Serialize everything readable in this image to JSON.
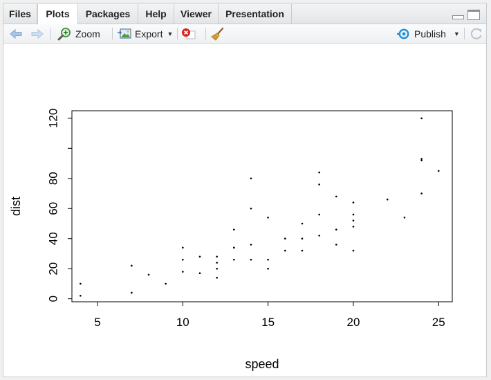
{
  "tabs": [
    {
      "label": "Files",
      "active": false
    },
    {
      "label": "Plots",
      "active": true
    },
    {
      "label": "Packages",
      "active": false
    },
    {
      "label": "Help",
      "active": false
    },
    {
      "label": "Viewer",
      "active": false
    },
    {
      "label": "Presentation",
      "active": false
    }
  ],
  "toolbar": {
    "zoom_label": "Zoom",
    "export_label": "Export",
    "publish_label": "Publish"
  },
  "colors": {
    "accent_blue": "#2f7ed8",
    "publish_blue": "#1f8fd6",
    "remove_red": "#d9261c"
  },
  "icons": [
    "back-arrow-icon",
    "forward-arrow-icon",
    "zoom-magnifier-icon",
    "export-image-icon",
    "remove-plot-icon",
    "clear-broom-icon",
    "publish-icon",
    "refresh-icon"
  ],
  "chart_data": {
    "type": "scatter",
    "xlabel": "speed",
    "ylabel": "dist",
    "xlim": [
      3.5,
      25.8
    ],
    "ylim": [
      -2,
      125
    ],
    "xticks": [
      5,
      10,
      15,
      20,
      25
    ],
    "yticks": [
      0,
      20,
      40,
      60,
      80,
      100,
      120
    ],
    "ytick_labels": [
      "0",
      "20",
      "40",
      "60",
      "80",
      "",
      "120"
    ],
    "grid": false,
    "points": [
      [
        4,
        2
      ],
      [
        4,
        10
      ],
      [
        7,
        4
      ],
      [
        7,
        22
      ],
      [
        8,
        16
      ],
      [
        9,
        10
      ],
      [
        10,
        18
      ],
      [
        10,
        26
      ],
      [
        10,
        34
      ],
      [
        11,
        17
      ],
      [
        11,
        28
      ],
      [
        12,
        14
      ],
      [
        12,
        20
      ],
      [
        12,
        24
      ],
      [
        12,
        28
      ],
      [
        13,
        26
      ],
      [
        13,
        34
      ],
      [
        13,
        34
      ],
      [
        13,
        46
      ],
      [
        14,
        26
      ],
      [
        14,
        36
      ],
      [
        14,
        60
      ],
      [
        14,
        80
      ],
      [
        15,
        20
      ],
      [
        15,
        26
      ],
      [
        15,
        54
      ],
      [
        16,
        32
      ],
      [
        16,
        40
      ],
      [
        17,
        32
      ],
      [
        17,
        40
      ],
      [
        17,
        50
      ],
      [
        18,
        42
      ],
      [
        18,
        56
      ],
      [
        18,
        76
      ],
      [
        18,
        84
      ],
      [
        19,
        36
      ],
      [
        19,
        46
      ],
      [
        19,
        68
      ],
      [
        20,
        32
      ],
      [
        20,
        48
      ],
      [
        20,
        52
      ],
      [
        20,
        56
      ],
      [
        20,
        64
      ],
      [
        22,
        66
      ],
      [
        23,
        54
      ],
      [
        24,
        70
      ],
      [
        24,
        92
      ],
      [
        24,
        93
      ],
      [
        24,
        120
      ],
      [
        25,
        85
      ]
    ]
  }
}
